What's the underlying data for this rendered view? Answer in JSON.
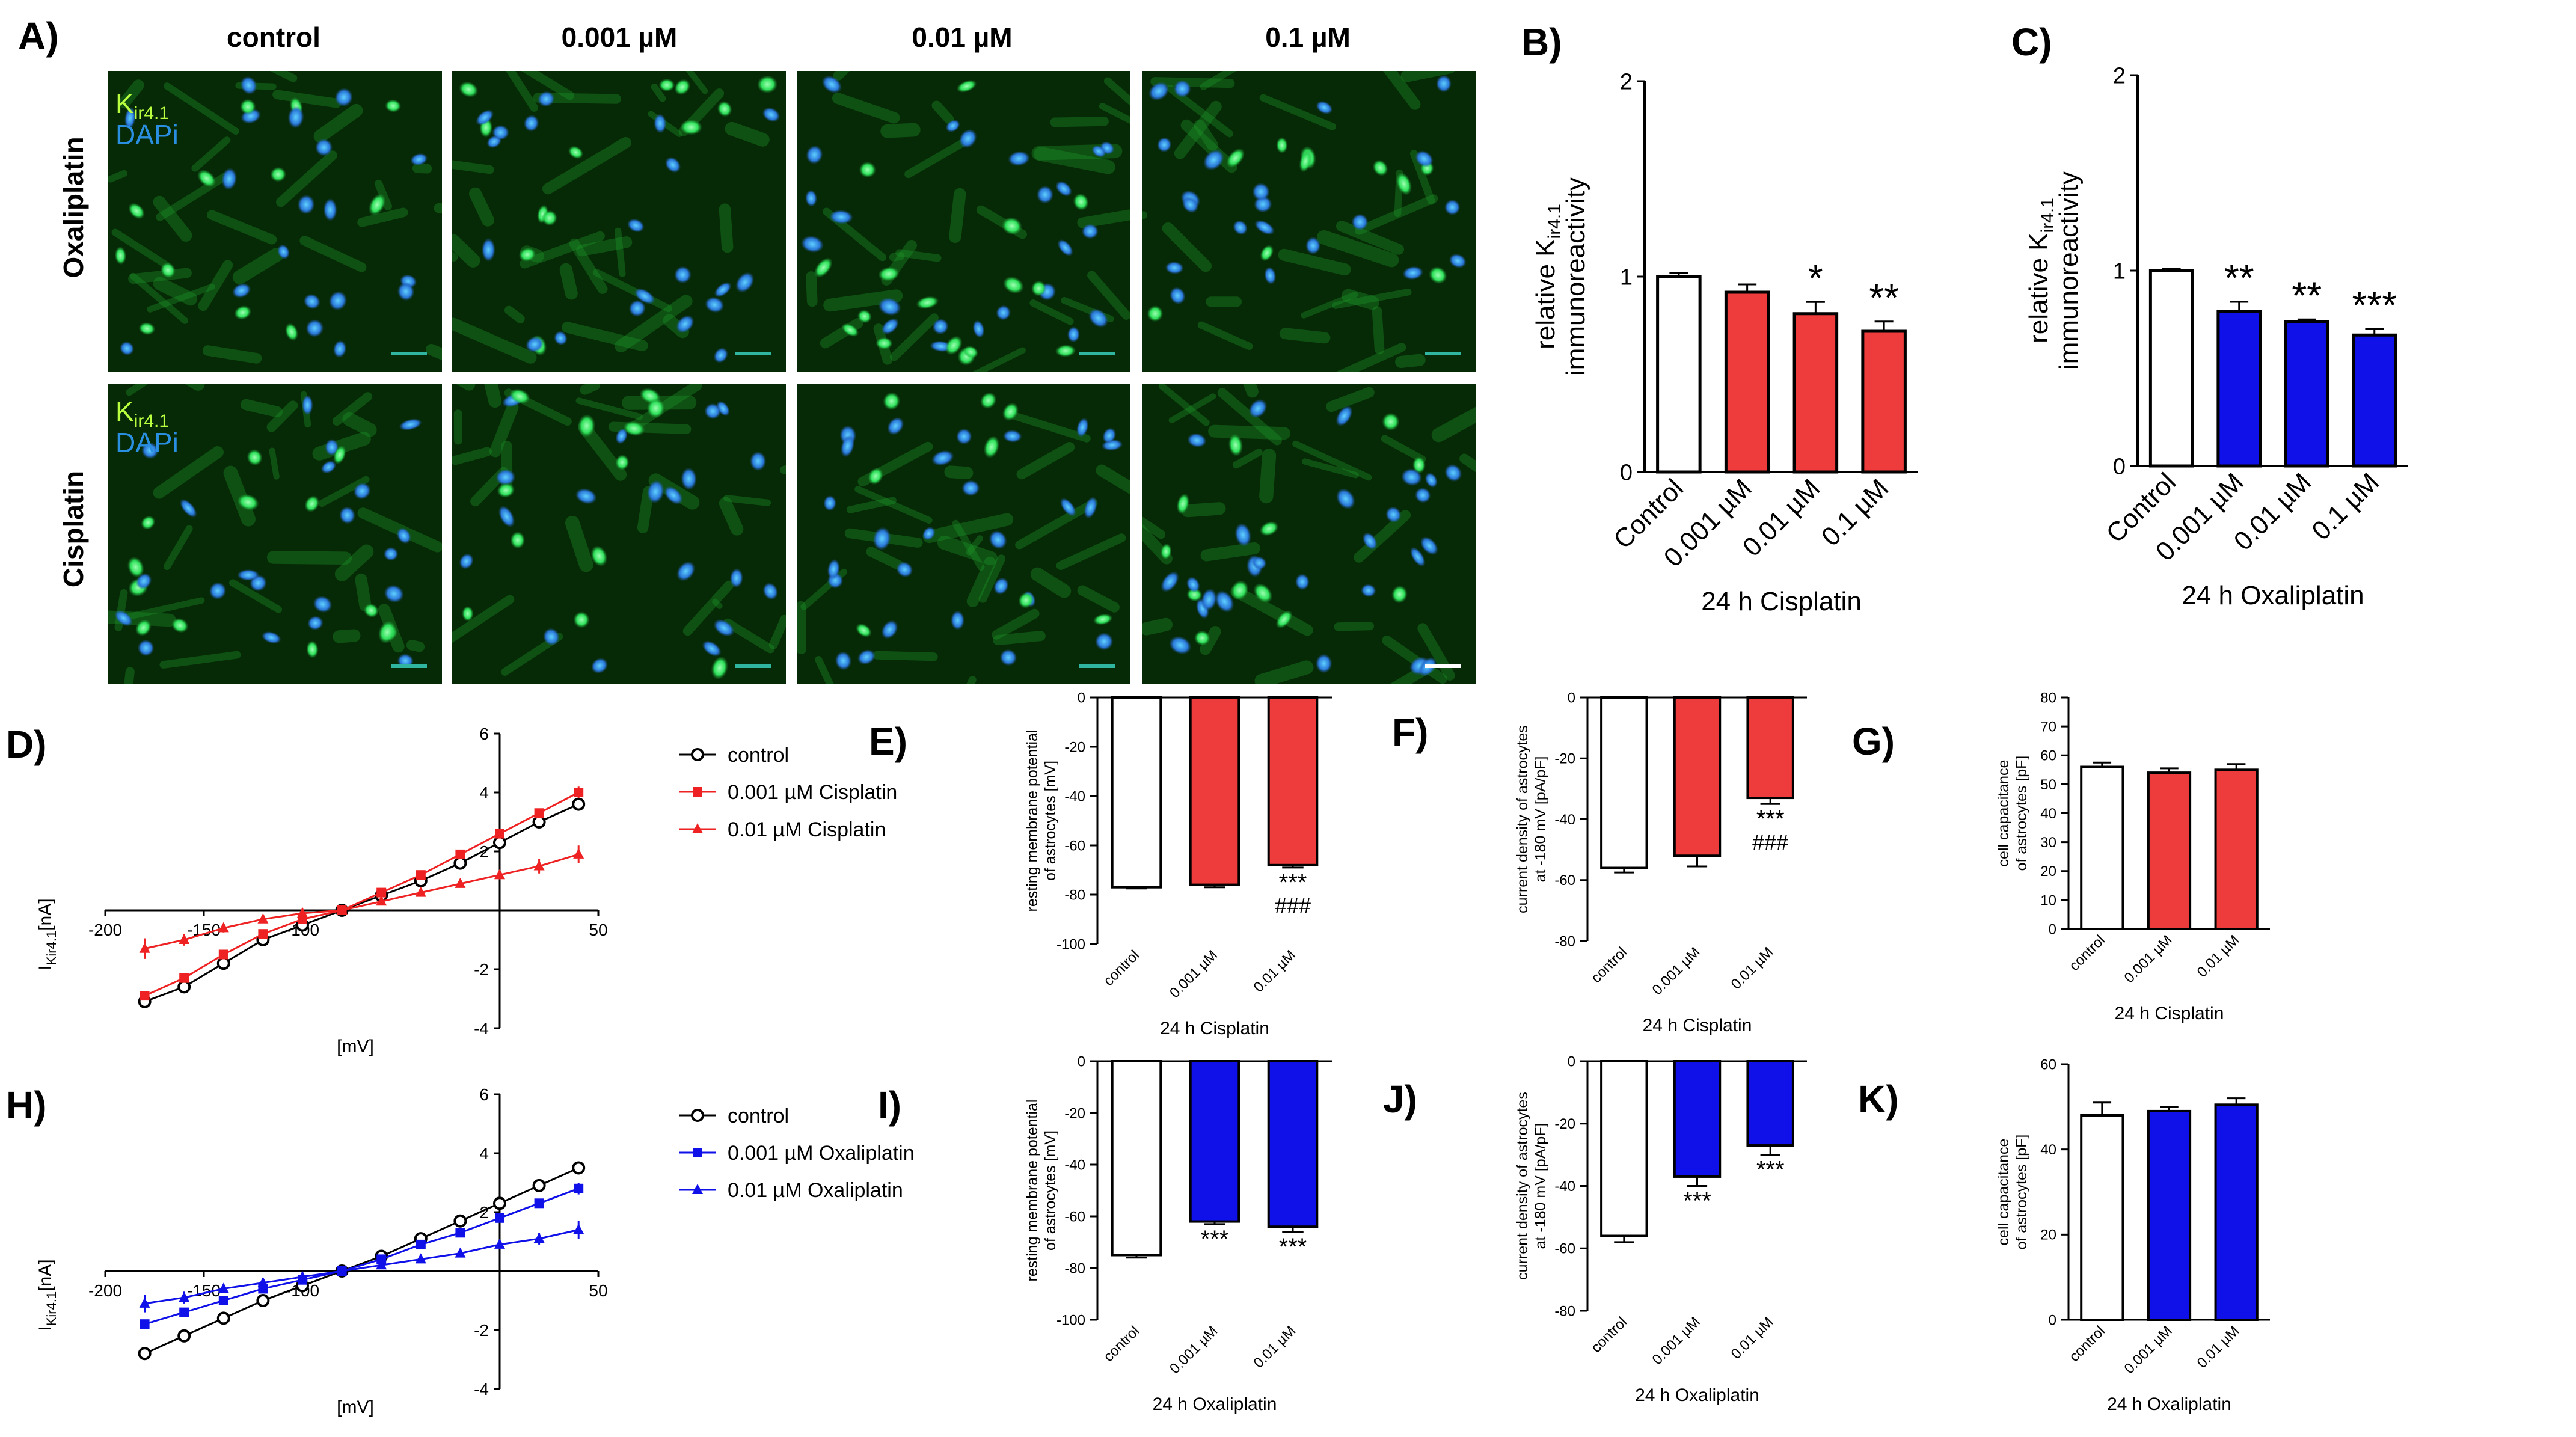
{
  "panel_letters": {
    "a": "A)",
    "b": "B)",
    "c": "C)",
    "d": "D)",
    "e": "E)",
    "f": "F)",
    "g": "G)",
    "h": "H)",
    "i": "I)",
    "j": "J)",
    "k": "K)"
  },
  "micro": {
    "col_headers": [
      "control",
      "0.001 µM",
      "0.01 µM",
      "0.1 µM"
    ],
    "row_labels": [
      "Oxaliplatin",
      "Cisplatin"
    ],
    "stain_k": "K",
    "stain_sub": "ir4.1",
    "stain_dapi": "DAPi",
    "colors": {
      "kir": "#1fd41f",
      "dapi": "#2a8fe0",
      "bg": "#062a06"
    }
  },
  "colors": {
    "cisplatin": "#ee3b3b",
    "oxaliplatin": "#1010e8",
    "control": "#ffffff"
  },
  "chart_data": [
    {
      "id": "B",
      "type": "bar",
      "categories": [
        "Control",
        "0.001 µM",
        "0.01 µM",
        "0.1 µM"
      ],
      "values": [
        1.0,
        0.92,
        0.81,
        0.72
      ],
      "errors": [
        0.02,
        0.04,
        0.06,
        0.05
      ],
      "stars": [
        "",
        "",
        "*",
        "**"
      ],
      "colors": [
        "control",
        "cisplatin",
        "cisplatin",
        "cisplatin"
      ],
      "ylim": [
        0,
        2
      ],
      "yticks": [
        0,
        1,
        2
      ],
      "ylabel_main": "relative K",
      "ylabel_sub": "ir4.1",
      "ylabel2": "immunoreactivity",
      "xlabel": "24 h Cisplatin"
    },
    {
      "id": "C",
      "type": "bar",
      "categories": [
        "Control",
        "0.001 µM",
        "0.01 µM",
        "0.1 µM"
      ],
      "values": [
        1.0,
        0.79,
        0.74,
        0.67
      ],
      "errors": [
        0.01,
        0.05,
        0.01,
        0.03
      ],
      "stars": [
        "",
        "**",
        "**",
        "***"
      ],
      "colors": [
        "control",
        "oxaliplatin",
        "oxaliplatin",
        "oxaliplatin"
      ],
      "ylim": [
        0,
        2
      ],
      "yticks": [
        0,
        1,
        2
      ],
      "ylabel_main": "relative K",
      "ylabel_sub": "ir4.1",
      "ylabel2": "immunoreactivity",
      "xlabel": "24 h Oxaliplatin"
    },
    {
      "id": "D",
      "type": "line",
      "x": [
        -180,
        -160,
        -140,
        -120,
        -100,
        -80,
        -60,
        -40,
        -20,
        0,
        20,
        40
      ],
      "series": [
        {
          "name": "control",
          "marker": "circle",
          "color": "#000000",
          "y": [
            -3.1,
            -2.6,
            -1.8,
            -1.0,
            -0.5,
            0.0,
            0.5,
            1.0,
            1.6,
            2.3,
            3.0,
            3.6
          ],
          "err": [
            0.1,
            0.1,
            0.15,
            0.1,
            0.1,
            0,
            0.1,
            0.1,
            0.1,
            0.1,
            0.1,
            0.2
          ]
        },
        {
          "name": "0.001 µM Cisplatin",
          "marker": "square",
          "color": "#ee2222",
          "y": [
            -2.9,
            -2.3,
            -1.5,
            -0.8,
            -0.3,
            0.0,
            0.6,
            1.2,
            1.9,
            2.6,
            3.3,
            4.0
          ],
          "err": [
            0.1,
            0.15,
            0.1,
            0.1,
            0.05,
            0,
            0.05,
            0.1,
            0.1,
            0.1,
            0.15,
            0.2
          ]
        },
        {
          "name": "0.01 µM Cisplatin",
          "marker": "triangle",
          "color": "#ee2222",
          "y": [
            -1.3,
            -1.0,
            -0.6,
            -0.3,
            -0.1,
            0.0,
            0.3,
            0.6,
            0.9,
            1.2,
            1.5,
            1.9
          ],
          "err": [
            0.35,
            0.2,
            0.15,
            0.1,
            0.1,
            0,
            0.1,
            0.1,
            0.1,
            0.15,
            0.25,
            0.3
          ]
        }
      ],
      "xlim": [
        -200,
        50
      ],
      "ylim": [
        -4,
        6
      ],
      "xticks": [
        -200,
        -150,
        -100,
        50
      ],
      "yticks": [
        -4,
        -2,
        2,
        4,
        6
      ],
      "xlabel": "[mV]",
      "ylabel_main": "I",
      "ylabel_sub": "Kir4.1",
      "ylabel_unit": "[nA]"
    },
    {
      "id": "H",
      "type": "line",
      "x": [
        -180,
        -160,
        -140,
        -120,
        -100,
        -80,
        -60,
        -40,
        -20,
        0,
        20,
        40
      ],
      "series": [
        {
          "name": "control",
          "marker": "circle",
          "color": "#000000",
          "y": [
            -2.8,
            -2.2,
            -1.6,
            -1.0,
            -0.5,
            0.0,
            0.5,
            1.1,
            1.7,
            2.3,
            2.9,
            3.5
          ],
          "err": [
            0.1,
            0.1,
            0.1,
            0.1,
            0.1,
            0,
            0.1,
            0.1,
            0.1,
            0.1,
            0.15,
            0.15
          ]
        },
        {
          "name": "0.001 µM Oxaliplatin",
          "marker": "square",
          "color": "#1010e8",
          "y": [
            -1.8,
            -1.4,
            -1.0,
            -0.6,
            -0.3,
            0.0,
            0.4,
            0.9,
            1.3,
            1.8,
            2.3,
            2.8
          ],
          "err": [
            0.1,
            0.1,
            0.1,
            0.1,
            0.05,
            0,
            0.05,
            0.1,
            0.1,
            0.1,
            0.15,
            0.2
          ]
        },
        {
          "name": "0.01 µM Oxaliplatin",
          "marker": "triangle",
          "color": "#1010e8",
          "y": [
            -1.1,
            -0.9,
            -0.6,
            -0.4,
            -0.2,
            0.0,
            0.2,
            0.4,
            0.6,
            0.9,
            1.1,
            1.4
          ],
          "err": [
            0.3,
            0.2,
            0.15,
            0.1,
            0.1,
            0,
            0.1,
            0.1,
            0.1,
            0.15,
            0.2,
            0.3
          ]
        }
      ],
      "xlim": [
        -200,
        50
      ],
      "ylim": [
        -4,
        6
      ],
      "xticks": [
        -200,
        -150,
        -100,
        50
      ],
      "yticks": [
        -4,
        -2,
        2,
        4,
        6
      ],
      "xlabel": "[mV]",
      "ylabel_main": "I",
      "ylabel_sub": "Kir4.1",
      "ylabel_unit": "[nA]"
    },
    {
      "id": "E",
      "type": "bar",
      "categories": [
        "control",
        "0.001 µM",
        "0.01 µM"
      ],
      "values": [
        -77,
        -76,
        -68
      ],
      "errors": [
        0.5,
        1,
        1
      ],
      "stars": [
        "",
        "",
        "***"
      ],
      "stars2": [
        "",
        "",
        "###"
      ],
      "colors": [
        "control",
        "cisplatin",
        "cisplatin"
      ],
      "ylim": [
        -100,
        0
      ],
      "yticks": [
        0,
        -20,
        -40,
        -60,
        -80,
        -100
      ],
      "ylabel1": "resting membrane potential",
      "ylabel2": "of astrocytes [mV]",
      "xlabel": "24 h Cisplatin"
    },
    {
      "id": "F",
      "type": "bar",
      "categories": [
        "control",
        "0.001 µM",
        "0.01 µM"
      ],
      "values": [
        -56,
        -52,
        -33
      ],
      "errors": [
        1.5,
        3.5,
        2
      ],
      "stars": [
        "",
        "",
        "***"
      ],
      "stars2": [
        "",
        "",
        "###"
      ],
      "colors": [
        "control",
        "cisplatin",
        "cisplatin"
      ],
      "ylim": [
        -80,
        0
      ],
      "yticks": [
        0,
        -20,
        -40,
        -60,
        -80
      ],
      "ylabel1": "current density of astrocytes",
      "ylabel2": "at -180 mV [pA/pF]",
      "xlabel": "24 h Cisplatin"
    },
    {
      "id": "G",
      "type": "bar",
      "categories": [
        "control",
        "0.001 µM",
        "0.01 µM"
      ],
      "values": [
        56,
        54,
        55
      ],
      "errors": [
        1.5,
        1.5,
        2
      ],
      "stars": [
        "",
        "",
        ""
      ],
      "stars2": [
        "",
        "",
        ""
      ],
      "colors": [
        "control",
        "cisplatin",
        "cisplatin"
      ],
      "ylim": [
        0,
        80
      ],
      "yticks": [
        0,
        10,
        20,
        30,
        40,
        50,
        60,
        70,
        80
      ],
      "ylabel1": "cell capacitance",
      "ylabel2": "of astrocytes [pF]",
      "xlabel": "24 h Cisplatin"
    },
    {
      "id": "I",
      "type": "bar",
      "categories": [
        "control",
        "0.001 µM",
        "0.01 µM"
      ],
      "values": [
        -75,
        -62,
        -64
      ],
      "errors": [
        1,
        1,
        2
      ],
      "stars": [
        "",
        "***",
        "***"
      ],
      "stars2": [
        "",
        "",
        ""
      ],
      "colors": [
        "control",
        "oxaliplatin",
        "oxaliplatin"
      ],
      "ylim": [
        -100,
        0
      ],
      "yticks": [
        0,
        -20,
        -40,
        -60,
        -80,
        -100
      ],
      "ylabel1": "resting membrane potential",
      "ylabel2": "of astrocytes [mV]",
      "xlabel": "24 h Oxaliplatin"
    },
    {
      "id": "J",
      "type": "bar",
      "categories": [
        "control",
        "0.001 µM",
        "0.01 µM"
      ],
      "values": [
        -56,
        -37,
        -27
      ],
      "errors": [
        2,
        3,
        3
      ],
      "stars": [
        "",
        "***",
        "***"
      ],
      "stars2": [
        "",
        "",
        ""
      ],
      "colors": [
        "control",
        "oxaliplatin",
        "oxaliplatin"
      ],
      "ylim": [
        -80,
        0
      ],
      "yticks": [
        0,
        -20,
        -40,
        -60,
        -80
      ],
      "ylabel1": "current density of astrocytes",
      "ylabel2": "at -180 mV [pA/pF]",
      "xlabel": "24 h Oxaliplatin"
    },
    {
      "id": "K",
      "type": "bar",
      "categories": [
        "control",
        "0.001 µM",
        "0.01 µM"
      ],
      "values": [
        48,
        49,
        50.5
      ],
      "errors": [
        3,
        1,
        1.5
      ],
      "stars": [
        "",
        "",
        ""
      ],
      "stars2": [
        "",
        "",
        ""
      ],
      "colors": [
        "control",
        "oxaliplatin",
        "oxaliplatin"
      ],
      "ylim": [
        0,
        60
      ],
      "yticks": [
        0,
        20,
        40,
        60
      ],
      "ylabel1": "cell capacitance",
      "ylabel2": "of astrocytes [pF]",
      "xlabel": "24 h Oxaliplatin"
    }
  ]
}
